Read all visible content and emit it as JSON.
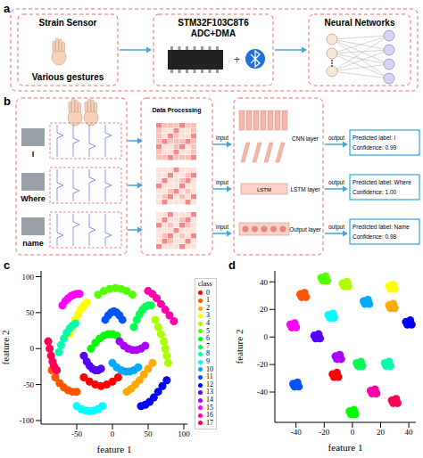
{
  "panel_labels": [
    "a",
    "b",
    "c",
    "d"
  ],
  "diagram_a": {
    "sensor": {
      "title": "Strain Sensor",
      "caption": "Various gestures"
    },
    "mcu": {
      "title": "STM32F103C8T6",
      "subtitle": "ADC+DMA"
    },
    "network": {
      "title": "Neural Networks"
    }
  },
  "diagram_b": {
    "gestures": [
      "I",
      "Where",
      "name"
    ],
    "processing": "Data Processing",
    "arrow_in": "input",
    "arrow_out": "output",
    "model": {
      "cnn": "CNN layer",
      "lstm_block": "LSTM",
      "lstm": "LSTM layer",
      "output": "Output layer"
    },
    "outputs": [
      {
        "label": "Predicted label: I",
        "confidence": "Confidence: 0.99"
      },
      {
        "label": "Predicted label: Where",
        "confidence": "Confidence: 1.00"
      },
      {
        "label": "Predicted label: Name",
        "confidence": "Confidence: 0.98"
      }
    ]
  },
  "chart_data": [
    {
      "type": "scatter",
      "x_label": "feature 1",
      "y_label": "feature 2",
      "legend_title": "class",
      "legend": "right",
      "xlim": [
        -100,
        105
      ],
      "xticks": [
        -50,
        0,
        50,
        100
      ],
      "ylim": [
        -105,
        108
      ],
      "yticks": [
        -100,
        -50,
        0,
        50,
        100
      ],
      "series": [
        {
          "name": "0",
          "color": "#ff0000",
          "x": [
            -40,
            -32,
            -24,
            -16,
            -8,
            0,
            8
          ],
          "y": [
            -40,
            -46,
            -50,
            -52,
            -50,
            -46,
            -40
          ]
        },
        {
          "name": "1",
          "color": "#ff5500",
          "x": [
            -85,
            -80,
            -74,
            -68,
            -62,
            -56,
            -50
          ],
          "y": [
            -30,
            -40,
            -48,
            -54,
            -58,
            -60,
            -60
          ]
        },
        {
          "name": "2",
          "color": "#ffaa00",
          "x": [
            20,
            26,
            32,
            38,
            44,
            50,
            56
          ],
          "y": [
            -60,
            -56,
            -50,
            -44,
            -36,
            -28,
            -20
          ]
        },
        {
          "name": "3",
          "color": "#ffff00",
          "x": [
            -60,
            -56,
            -52,
            -48,
            -44,
            -40,
            -36
          ],
          "y": [
            20,
            30,
            40,
            48,
            55,
            60,
            64
          ]
        },
        {
          "name": "4",
          "color": "#aaff00",
          "x": [
            60,
            64,
            68,
            72,
            74,
            76,
            78
          ],
          "y": [
            40,
            30,
            20,
            10,
            0,
            -10,
            -20
          ]
        },
        {
          "name": "5",
          "color": "#55ff00",
          "x": [
            -20,
            -12,
            -4,
            4,
            12,
            20,
            28
          ],
          "y": [
            75,
            80,
            83,
            84,
            83,
            80,
            75
          ]
        },
        {
          "name": "6",
          "color": "#00ff00",
          "x": [
            -30,
            -24,
            -18,
            -12,
            -6,
            0,
            6
          ],
          "y": [
            0,
            8,
            14,
            18,
            20,
            20,
            18
          ]
        },
        {
          "name": "7",
          "color": "#00ff55",
          "x": [
            30,
            34,
            38,
            42,
            46,
            50,
            54
          ],
          "y": [
            30,
            40,
            48,
            54,
            58,
            60,
            60
          ]
        },
        {
          "name": "8",
          "color": "#00ffaa",
          "x": [
            -75,
            -72,
            -68,
            -64,
            -60,
            -56,
            -52
          ],
          "y": [
            -5,
            5,
            14,
            22,
            28,
            32,
            35
          ]
        },
        {
          "name": "9",
          "color": "#00ffff",
          "x": [
            -50,
            -44,
            -38,
            -32,
            -26,
            -20,
            -14
          ],
          "y": [
            -80,
            -84,
            -86,
            -87,
            -86,
            -84,
            -80
          ]
        },
        {
          "name": "10",
          "color": "#00aaff",
          "x": [
            0,
            6,
            12,
            18,
            24,
            30,
            36
          ],
          "y": [
            -20,
            -26,
            -30,
            -32,
            -32,
            -30,
            -26
          ]
        },
        {
          "name": "11",
          "color": "#0055ff",
          "x": [
            -10,
            -6,
            -2,
            2,
            6,
            10,
            14
          ],
          "y": [
            40,
            46,
            50,
            52,
            50,
            46,
            40
          ]
        },
        {
          "name": "12",
          "color": "#0000ff",
          "x": [
            40,
            46,
            52,
            58,
            64,
            70,
            76
          ],
          "y": [
            -80,
            -78,
            -74,
            -68,
            -60,
            -52,
            -44
          ]
        },
        {
          "name": "13",
          "color": "#5500ff",
          "x": [
            -40,
            -36,
            -32,
            -28,
            -24,
            -20,
            -16
          ],
          "y": [
            -10,
            -18,
            -24,
            -28,
            -30,
            -30,
            -28
          ]
        },
        {
          "name": "14",
          "color": "#aa00ff",
          "x": [
            10,
            16,
            22,
            28,
            34,
            40,
            46
          ],
          "y": [
            10,
            4,
            0,
            -2,
            -2,
            0,
            4
          ]
        },
        {
          "name": "15",
          "color": "#ff00ff",
          "x": [
            -70,
            -66,
            -62,
            -58,
            -54,
            -50,
            -46
          ],
          "y": [
            60,
            66,
            70,
            73,
            75,
            76,
            76
          ]
        },
        {
          "name": "16",
          "color": "#ff00aa",
          "x": [
            50,
            56,
            62,
            68,
            74,
            80,
            86
          ],
          "y": [
            80,
            76,
            70,
            62,
            54,
            46,
            38
          ]
        },
        {
          "name": "17",
          "color": "#ff0055",
          "x": [
            -90,
            -88,
            -86,
            -84,
            -82,
            -80,
            -78
          ],
          "y": [
            10,
            0,
            -10,
            -18,
            -24,
            -28,
            -30
          ]
        }
      ]
    },
    {
      "type": "scatter",
      "x_label": "feature 1",
      "y_label": "feature 2",
      "xlim": [
        -55,
        45
      ],
      "xticks": [
        -40,
        -20,
        0,
        20,
        40
      ],
      "ylim": [
        -62,
        48
      ],
      "yticks": [
        -40,
        -20,
        0,
        20,
        40
      ],
      "series": [
        {
          "color": "#ff0000",
          "x": [
            -14,
            -13,
            -12,
            -11,
            -10
          ],
          "y": [
            -27,
            -29,
            -28,
            -26,
            -29
          ]
        },
        {
          "color": "#ff5500",
          "x": [
            -37,
            -36,
            -35,
            -34,
            -33
          ],
          "y": [
            31,
            29,
            30,
            32,
            29
          ]
        },
        {
          "color": "#ffaa00",
          "x": [
            26,
            27,
            28,
            29,
            30
          ],
          "y": [
            23,
            21,
            22,
            24,
            21
          ]
        },
        {
          "color": "#ffff00",
          "x": [
            26,
            27,
            28,
            29,
            30
          ],
          "y": [
            37,
            35,
            36,
            38,
            35
          ]
        },
        {
          "color": "#aaff00",
          "x": [
            -7,
            -6,
            -5,
            -4,
            -3
          ],
          "y": [
            39,
            37,
            38,
            40,
            37
          ]
        },
        {
          "color": "#55ff00",
          "x": [
            -22,
            -21,
            -20,
            -19,
            -18
          ],
          "y": [
            43,
            41,
            42,
            44,
            41
          ]
        },
        {
          "color": "#00ff00",
          "x": [
            -2,
            -1,
            0,
            1,
            2
          ],
          "y": [
            -54,
            -56,
            -55,
            -53,
            -56
          ]
        },
        {
          "color": "#00ff55",
          "x": [
            3,
            4,
            5,
            6,
            7
          ],
          "y": [
            -19,
            -21,
            -20,
            -18,
            -21
          ]
        },
        {
          "color": "#00ffaa",
          "x": [
            23,
            24,
            25,
            26,
            27
          ],
          "y": [
            -19,
            -21,
            -20,
            -18,
            -21
          ]
        },
        {
          "color": "#00ffff",
          "x": [
            -17,
            -16,
            -15,
            -14,
            -13
          ],
          "y": [
            16,
            14,
            15,
            17,
            14
          ]
        },
        {
          "color": "#00aaff",
          "x": [
            8,
            9,
            10,
            11,
            12
          ],
          "y": [
            26,
            24,
            25,
            27,
            24
          ]
        },
        {
          "color": "#0055ff",
          "x": [
            -42,
            -41,
            -40,
            -39,
            -38
          ],
          "y": [
            -34,
            -36,
            -35,
            -33,
            -36
          ]
        },
        {
          "color": "#0000ff",
          "x": [
            38,
            39,
            40,
            41,
            42
          ],
          "y": [
            11,
            9,
            10,
            12,
            9
          ]
        },
        {
          "color": "#5500ff",
          "x": [
            -27,
            -26,
            -25,
            -24,
            -23
          ],
          "y": [
            1,
            -1,
            0,
            2,
            -1
          ]
        },
        {
          "color": "#aa00ff",
          "x": [
            -12,
            -11,
            -10,
            -9,
            -8
          ],
          "y": [
            -14,
            -16,
            -15,
            -13,
            -16
          ]
        },
        {
          "color": "#ff00ff",
          "x": [
            -44,
            -43,
            -42,
            -41,
            -40
          ],
          "y": [
            9,
            7,
            8,
            10,
            7
          ]
        },
        {
          "color": "#ff00aa",
          "x": [
            13,
            14,
            15,
            16,
            17
          ],
          "y": [
            -39,
            -41,
            -40,
            -38,
            -41
          ]
        },
        {
          "color": "#ff0055",
          "x": [
            28,
            29,
            30,
            31,
            32
          ],
          "y": [
            -46,
            -48,
            -47,
            -45,
            -48
          ]
        }
      ]
    }
  ]
}
